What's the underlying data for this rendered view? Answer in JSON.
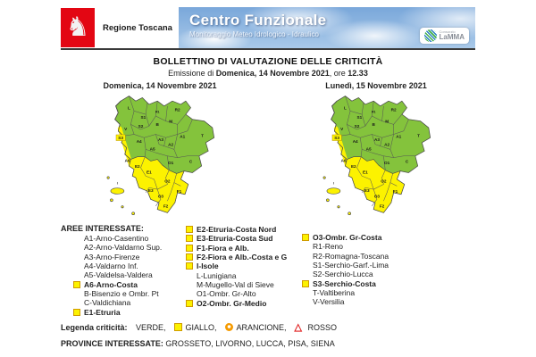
{
  "colors": {
    "green": "#84c33c",
    "yellow": "#fcf200",
    "orange": "#f59a00",
    "red": "#e02020",
    "red_logo": "#e30613"
  },
  "header": {
    "region_name": "Regione Toscana",
    "banner_title": "Centro Funzionale",
    "banner_subtitle": "Monitoraggio Meteo Idrologico - Idraulico",
    "lamma_small": "Consorzio",
    "lamma_name": "LaMMA"
  },
  "title": "BOLLETTINO DI VALUTAZIONE DELLE CRITICITÀ",
  "emission": {
    "prefix": "Emissione di ",
    "date": "Domenica, 14 Novembre 2021",
    "mid": ", ore ",
    "time": "12.33"
  },
  "maps": {
    "left_label": "Domenica, 14 Novembre 2021",
    "right_label": "Lunedì, 15 Novembre 2021",
    "zone_codes": [
      "L",
      "S1",
      "R1",
      "R2",
      "V",
      "S2",
      "B",
      "M",
      "S3",
      "A4",
      "A3",
      "A1",
      "T",
      "A2",
      "A6",
      "A5",
      "O1",
      "C",
      "E2",
      "E1",
      "O2",
      "E3",
      "O3",
      "F1",
      "F2",
      "I"
    ]
  },
  "areas": {
    "title": "AREE INTERESSATE:",
    "columns": [
      [
        {
          "t": "A1-Arno-Casentino",
          "f": false
        },
        {
          "t": "A2-Arno-Valdarno Sup.",
          "f": false
        },
        {
          "t": "A3-Arno-Firenze",
          "f": false
        },
        {
          "t": "A4-Valdarno Inf.",
          "f": false
        },
        {
          "t": "A5-Valdelsa-Valdera",
          "f": false
        },
        {
          "t": "A6-Arno-Costa",
          "f": true
        },
        {
          "t": "B-Bisenzio e Ombr. Pt",
          "f": false
        },
        {
          "t": "C-Valdichiana",
          "f": false
        },
        {
          "t": "E1-Etruria",
          "f": true
        }
      ],
      [
        {
          "t": "E2-Etruria-Costa Nord",
          "f": true
        },
        {
          "t": "E3-Etruria-Costa Sud",
          "f": true
        },
        {
          "t": "F1-Fiora e Alb.",
          "f": true
        },
        {
          "t": "F2-Fiora e Alb.-Costa e G",
          "f": true
        },
        {
          "t": "I-Isole",
          "f": true
        },
        {
          "t": "L-Lunigiana",
          "f": false
        },
        {
          "t": "M-Mugello-Val di Sieve",
          "f": false
        },
        {
          "t": "O1-Ombr. Gr-Alto",
          "f": false
        },
        {
          "t": "O2-Ombr. Gr-Medio",
          "f": true
        }
      ],
      [
        {
          "t": "O3-Ombr. Gr-Costa",
          "f": true
        },
        {
          "t": "R1-Reno",
          "f": false
        },
        {
          "t": "R2-Romagna-Toscana",
          "f": false
        },
        {
          "t": "S1-Serchio-Garf.-Lima",
          "f": false
        },
        {
          "t": "S2-Serchio-Lucca",
          "f": false
        },
        {
          "t": "S3-Serchio-Costa",
          "f": true
        },
        {
          "t": "T-Valtiberina",
          "f": false
        },
        {
          "t": "V-Versilia",
          "f": false
        }
      ]
    ]
  },
  "legend": {
    "title": "Legenda criticità:",
    "items": [
      {
        "label": "VERDE,",
        "icon": "none"
      },
      {
        "label": "GIALLO,",
        "icon": "yellow-square"
      },
      {
        "label": "ARANCIONE,",
        "icon": "orange-circle"
      },
      {
        "label": "ROSSO",
        "icon": "red-triangle"
      }
    ]
  },
  "provinces": {
    "label": "PROVINCE INTERESSATE:",
    "value": "GROSSETO, LIVORNO, LUCCA, PISA, SIENA"
  }
}
